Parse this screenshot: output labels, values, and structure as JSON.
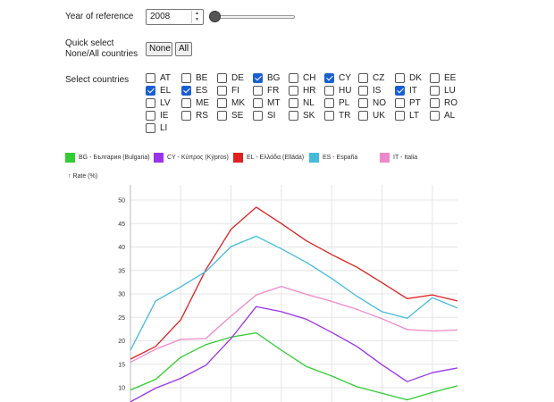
{
  "year": {
    "label": "Year of reference",
    "value": "2008",
    "slider_position": 0
  },
  "quick_select": {
    "label_line1": "Quick select",
    "label_line2": "None/All countries",
    "none_label": "None",
    "all_label": "All"
  },
  "countries": {
    "label": "Select countries",
    "items": [
      {
        "code": "AT",
        "checked": false
      },
      {
        "code": "BE",
        "checked": false
      },
      {
        "code": "DE",
        "checked": false
      },
      {
        "code": "BG",
        "checked": true
      },
      {
        "code": "CH",
        "checked": false
      },
      {
        "code": "CY",
        "checked": true
      },
      {
        "code": "CZ",
        "checked": false
      },
      {
        "code": "DK",
        "checked": false
      },
      {
        "code": "EE",
        "checked": false
      },
      {
        "code": "EL",
        "checked": true
      },
      {
        "code": "ES",
        "checked": true
      },
      {
        "code": "FI",
        "checked": false
      },
      {
        "code": "FR",
        "checked": false
      },
      {
        "code": "HR",
        "checked": false
      },
      {
        "code": "HU",
        "checked": false
      },
      {
        "code": "IS",
        "checked": false
      },
      {
        "code": "IT",
        "checked": true
      },
      {
        "code": "LU",
        "checked": false
      },
      {
        "code": "LV",
        "checked": false
      },
      {
        "code": "ME",
        "checked": false
      },
      {
        "code": "MK",
        "checked": false
      },
      {
        "code": "MT",
        "checked": false
      },
      {
        "code": "NL",
        "checked": false
      },
      {
        "code": "PL",
        "checked": false
      },
      {
        "code": "NO",
        "checked": false
      },
      {
        "code": "PT",
        "checked": false
      },
      {
        "code": "RO",
        "checked": false
      },
      {
        "code": "IE",
        "checked": false
      },
      {
        "code": "RS",
        "checked": false
      },
      {
        "code": "SE",
        "checked": false
      },
      {
        "code": "SI",
        "checked": false
      },
      {
        "code": "SK",
        "checked": false
      },
      {
        "code": "TR",
        "checked": false
      },
      {
        "code": "UK",
        "checked": false
      },
      {
        "code": "LT",
        "checked": false
      },
      {
        "code": "AL",
        "checked": false
      },
      {
        "code": "LI",
        "checked": false
      }
    ]
  },
  "colors": {
    "BG": "#33cc33",
    "CY": "#9933ee",
    "EL": "#dd2222",
    "ES": "#44bbdd",
    "IT": "#ee88cc",
    "grid": "#e6e6e6",
    "checkbox_checked": "#1a5fd1"
  },
  "chart_data": {
    "type": "line",
    "title": "",
    "xlabel": "",
    "ylabel": "↑ Rate (%)",
    "ylim": [
      7,
      54
    ],
    "y_ticks": [
      10,
      15,
      20,
      25,
      30,
      35,
      40,
      45,
      50
    ],
    "grid": true,
    "legend_position": "top",
    "x": [
      0,
      1,
      2,
      3,
      4,
      5,
      6,
      7,
      8,
      9,
      10,
      11,
      12,
      13
    ],
    "series": [
      {
        "key": "BG",
        "name": "BG - България (Bulgaria)",
        "values": [
          9.5,
          11.8,
          16.5,
          19.2,
          20.8,
          21.7,
          18.0,
          14.5,
          12.5,
          10.2,
          8.8,
          7.4,
          9.0,
          10.4
        ]
      },
      {
        "key": "CY",
        "name": "CY - Κύπρος (Kýpros)",
        "values": [
          7.0,
          9.9,
          12.0,
          14.8,
          20.5,
          27.3,
          26.2,
          24.6,
          21.8,
          18.8,
          14.9,
          11.3,
          13.2,
          14.2
        ]
      },
      {
        "key": "EL",
        "name": "EL - Ελλάδα (Elláda)",
        "values": [
          16.1,
          18.8,
          24.5,
          35.2,
          43.8,
          48.5,
          45.0,
          41.3,
          38.4,
          35.7,
          32.4,
          29.0,
          29.8,
          28.5
        ]
      },
      {
        "key": "ES",
        "name": "ES - España",
        "values": [
          18.0,
          28.5,
          31.5,
          34.8,
          40.1,
          42.3,
          39.6,
          36.7,
          33.3,
          29.5,
          26.2,
          24.8,
          29.2,
          27.0
        ]
      },
      {
        "key": "IT",
        "name": "IT - Italia",
        "values": [
          15.4,
          18.2,
          20.3,
          20.5,
          25.3,
          29.8,
          31.6,
          29.9,
          28.4,
          26.7,
          24.7,
          22.4,
          22.1,
          22.3
        ]
      }
    ]
  }
}
